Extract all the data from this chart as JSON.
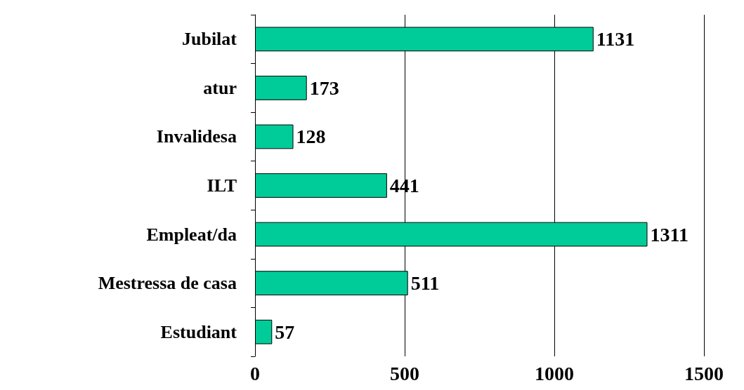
{
  "chart_data": {
    "type": "bar",
    "orientation": "horizontal",
    "categories": [
      "Jubilat",
      "atur",
      "Invalidesa",
      "ILT",
      "Empleat/da",
      "Mestressa de casa",
      "Estudiant"
    ],
    "values": [
      1131,
      173,
      128,
      441,
      1311,
      511,
      57
    ],
    "color": "#00cc99",
    "xlim": [
      0,
      1500
    ],
    "xticks": [
      0,
      500,
      1000,
      1500
    ],
    "grid": "x",
    "data_labels": true
  }
}
